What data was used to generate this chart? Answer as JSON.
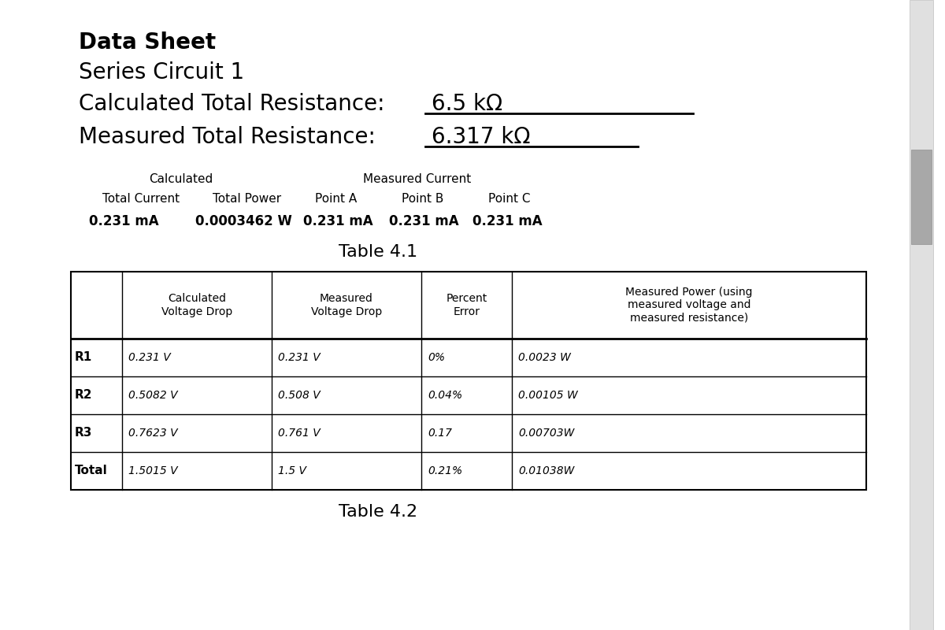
{
  "title": "Data Sheet",
  "subtitle": "Series Circuit 1",
  "calc_resistance_label": "Calculated Total Resistance:  ",
  "calc_resistance_value": "6.5 kΩ",
  "meas_resistance_label": "Measured Total Resistance:  ",
  "meas_resistance_value": "6.317 kΩ",
  "table1_row1_col1": "Calculated",
  "table1_row1_col2": "Measured Current",
  "table1_row2": [
    "Total Current",
    "Total Power",
    "Point A",
    "Point B",
    "Point C"
  ],
  "table1_data": [
    "0.231 mA",
    "0.0003462 W",
    "0.231 mA",
    "0.231 mA",
    "0.231 mA"
  ],
  "table1_title": "Table 4.1",
  "table2_col_headers": [
    "",
    "Calculated\nVoltage Drop",
    "Measured\nVoltage Drop",
    "Percent\nError",
    "Measured Power (using\nmeasured voltage and\nmeasured resistance)"
  ],
  "table2_rows": [
    [
      "R1",
      "0.231 V",
      "0.231 V",
      "0%",
      "0.0023 W"
    ],
    [
      "R2",
      "0.5082 V",
      "0.508 V",
      "0.04%",
      "0.00105 W"
    ],
    [
      "R3",
      "0.7623 V",
      "0.761 V",
      "0.17",
      "0.00703W"
    ],
    [
      "Total",
      "1.5015 V",
      "1.5 V",
      "0.21%",
      "0.01038W"
    ]
  ],
  "table2_title": "Table 4.2",
  "bg_color": "#ffffff",
  "text_color": "#000000",
  "scrollbar_color": "#c8c8c8",
  "scrollbar_thumb_color": "#a0a0a0"
}
